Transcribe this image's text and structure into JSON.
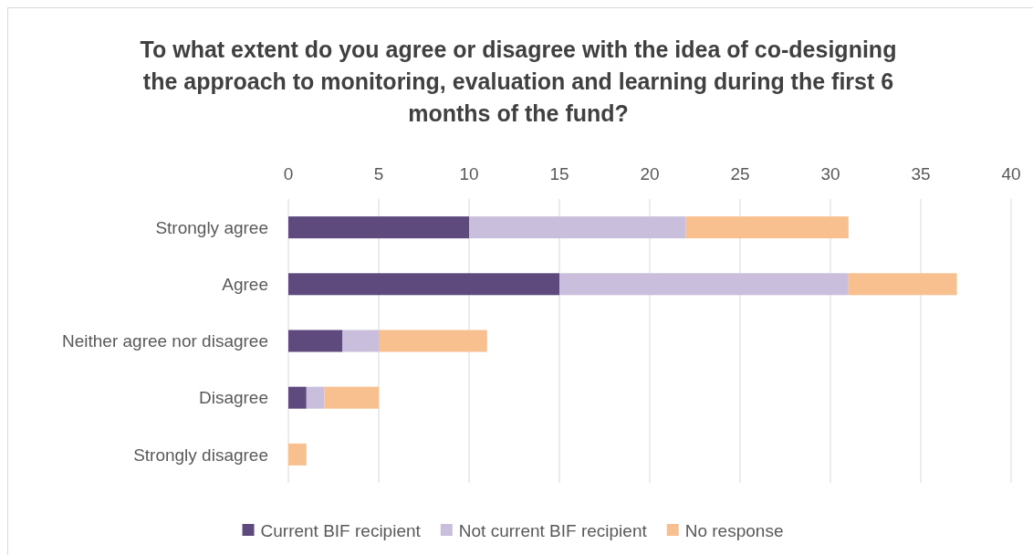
{
  "chart_data": {
    "type": "bar",
    "orientation": "horizontal",
    "stacked": true,
    "title": "To what extent do you agree or disagree with the idea of co-designing the approach to monitoring, evaluation and learning during the first 6 months of the fund?",
    "categories": [
      "Strongly agree",
      "Agree",
      "Neither agree nor disagree",
      "Disagree",
      "Strongly disagree"
    ],
    "series": [
      {
        "name": "Current BIF recipient",
        "color": "#5e4a7d",
        "values": [
          10,
          15,
          3,
          1,
          0
        ]
      },
      {
        "name": "Not current BIF recipient",
        "color": "#c9bfdc",
        "values": [
          12,
          16,
          2,
          1,
          0
        ]
      },
      {
        "name": "No response",
        "color": "#f9c08f",
        "values": [
          9,
          6,
          6,
          3,
          1
        ]
      }
    ],
    "xlim": [
      0,
      40
    ],
    "xticks": [
      0,
      5,
      10,
      15,
      20,
      25,
      30,
      35,
      40
    ],
    "grid": "x",
    "legend": "bottom"
  }
}
